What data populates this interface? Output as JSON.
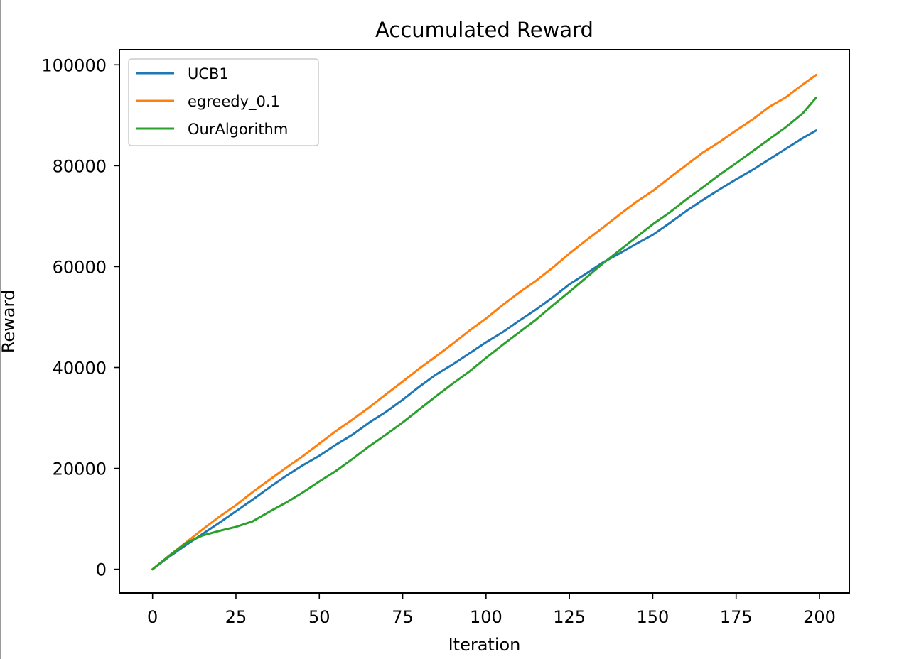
{
  "chart_data": {
    "type": "line",
    "title": "Accumulated Reward",
    "xlabel": "Iteration",
    "ylabel": "Reward",
    "xlim": [
      -9.95,
      208.95
    ],
    "ylim": [
      -4700,
      103000
    ],
    "xticks": [
      0,
      25,
      50,
      75,
      100,
      125,
      150,
      175,
      200
    ],
    "yticks": [
      0,
      20000,
      40000,
      60000,
      80000,
      100000
    ],
    "grid": false,
    "legend_position": "upper-left",
    "series": [
      {
        "name": "UCB1",
        "color": "#1f77b4",
        "x": [
          0,
          5,
          10,
          15,
          20,
          25,
          30,
          35,
          40,
          45,
          50,
          55,
          60,
          65,
          70,
          75,
          80,
          85,
          90,
          95,
          100,
          105,
          110,
          115,
          120,
          125,
          130,
          135,
          140,
          145,
          150,
          155,
          160,
          165,
          170,
          175,
          180,
          185,
          190,
          195,
          199
        ],
        "y": [
          0,
          2500,
          4800,
          7000,
          9200,
          11500,
          13800,
          16200,
          18500,
          20600,
          22500,
          24700,
          26700,
          29100,
          31200,
          33600,
          36200,
          38600,
          40600,
          42800,
          45000,
          47000,
          49300,
          51500,
          53900,
          56500,
          58600,
          60800,
          62600,
          64500,
          66300,
          68600,
          71000,
          73200,
          75300,
          77300,
          79200,
          81300,
          83400,
          85500,
          87000
        ]
      },
      {
        "name": "egreedy_0.1",
        "color": "#ff7f0e",
        "x": [
          0,
          5,
          10,
          15,
          20,
          25,
          30,
          35,
          40,
          45,
          50,
          55,
          60,
          65,
          70,
          75,
          80,
          85,
          90,
          95,
          100,
          105,
          110,
          115,
          120,
          125,
          130,
          135,
          140,
          145,
          150,
          155,
          160,
          165,
          170,
          175,
          180,
          185,
          190,
          195,
          199
        ],
        "y": [
          0,
          2700,
          5300,
          7900,
          10400,
          12700,
          15300,
          17700,
          20100,
          22400,
          24900,
          27400,
          29700,
          32100,
          34700,
          37200,
          39800,
          42200,
          44700,
          47300,
          49700,
          52400,
          54900,
          57200,
          59800,
          62600,
          65200,
          67700,
          70300,
          72800,
          75000,
          77600,
          80100,
          82600,
          84700,
          87000,
          89200,
          91700,
          93600,
          96100,
          98000
        ]
      },
      {
        "name": "OurAlgorithm",
        "color": "#2ca02c",
        "x": [
          0,
          5,
          10,
          15,
          20,
          25,
          30,
          35,
          40,
          45,
          50,
          55,
          60,
          65,
          70,
          75,
          80,
          85,
          90,
          95,
          100,
          105,
          110,
          115,
          120,
          125,
          130,
          135,
          140,
          145,
          150,
          155,
          160,
          165,
          170,
          175,
          180,
          185,
          190,
          195,
          199
        ],
        "y": [
          0,
          2700,
          5200,
          6700,
          7600,
          8400,
          9500,
          11400,
          13200,
          15200,
          17400,
          19500,
          21900,
          24400,
          26700,
          29100,
          31700,
          34300,
          36800,
          39200,
          41900,
          44500,
          47000,
          49500,
          52300,
          55000,
          57800,
          60600,
          63200,
          65800,
          68400,
          70700,
          73300,
          75700,
          78200,
          80500,
          82900,
          85300,
          87700,
          90400,
          93500
        ]
      }
    ]
  }
}
